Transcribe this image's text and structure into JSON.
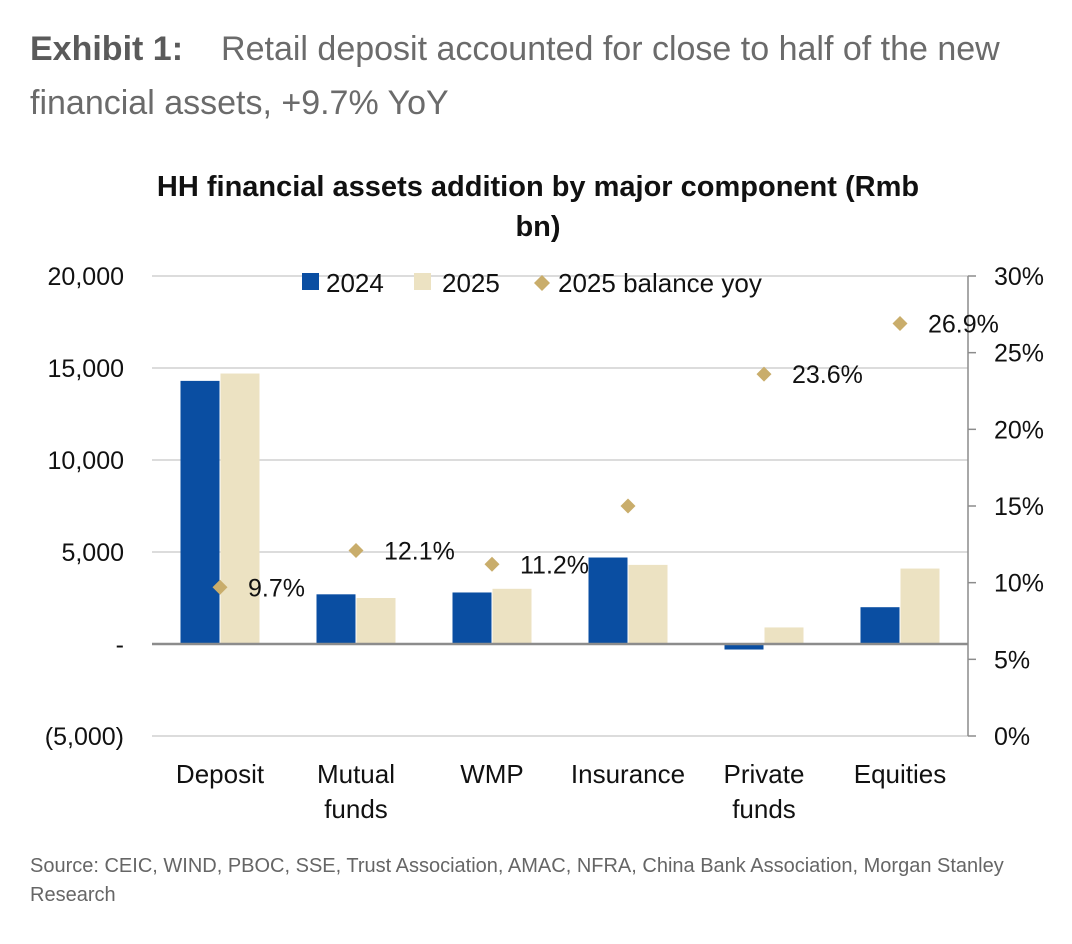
{
  "exhibit": {
    "label": "Exhibit 1:",
    "text": "Retail deposit accounted for close to half of the new financial assets, +9.7% YoY"
  },
  "source": "Source: CEIC, WIND, PBOC, SSE, Trust Association, AMAC, NFRA, China Bank Association, Morgan Stanley Research",
  "colors": {
    "s2024": "#0a4ea2",
    "s2025": "#ece2c2",
    "yoy": "#c9ad6b",
    "grid": "#d0d0d0",
    "axis": "#8c8c8c"
  },
  "chart_data": {
    "type": "bar",
    "title_lines": [
      "HH financial assets addition by major component (Rmb",
      "bn)"
    ],
    "categories": [
      [
        "Deposit"
      ],
      [
        "Mutual",
        "funds"
      ],
      [
        "WMP"
      ],
      [
        "Insurance"
      ],
      [
        "Private",
        "funds"
      ],
      [
        "Equities"
      ]
    ],
    "series": [
      {
        "name": "2024",
        "axis": "left",
        "values": [
          14300,
          2700,
          2800,
          4700,
          -300,
          2000
        ]
      },
      {
        "name": "2025",
        "axis": "left",
        "values": [
          14700,
          2500,
          3000,
          4300,
          900,
          4100
        ]
      },
      {
        "name": "2025 balance yoy",
        "axis": "right",
        "type": "scatter",
        "values": [
          9.7,
          12.1,
          11.2,
          15.0,
          23.6,
          26.9
        ],
        "labels": [
          "9.7%",
          "12.1%",
          "11.2%",
          "",
          "23.6%",
          "26.9%"
        ]
      }
    ],
    "y_left": {
      "range": [
        -5000,
        20000
      ],
      "ticks": [
        -5000,
        0,
        5000,
        10000,
        15000,
        20000
      ],
      "tick_labels": [
        "(5,000)",
        "-",
        "5,000",
        "10,000",
        "15,000",
        "20,000"
      ]
    },
    "y_right": {
      "range": [
        0,
        30
      ],
      "ticks": [
        0,
        5,
        10,
        15,
        20,
        25,
        30
      ],
      "tick_labels": [
        "0%",
        "5%",
        "10%",
        "15%",
        "20%",
        "25%",
        "30%"
      ]
    },
    "legend": {
      "position": "top-center",
      "entries": [
        "2024",
        "2025",
        "2025 balance yoy"
      ]
    },
    "grid": true
  }
}
